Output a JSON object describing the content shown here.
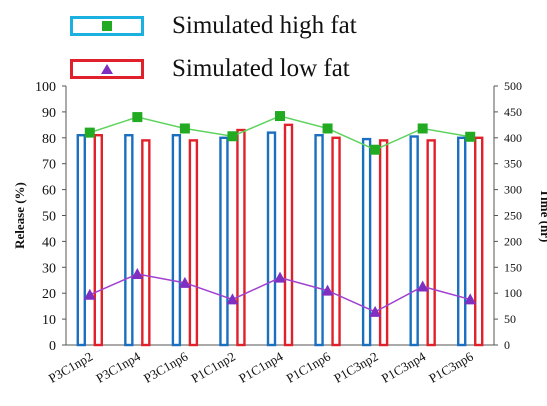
{
  "chart_data": {
    "type": "bar",
    "categories": [
      "P3C1np2",
      "P3C1np4",
      "P3C1np6",
      "P1C1np2",
      "P1C1np4",
      "P1C1np6",
      "P1C3np2",
      "P1C3np4",
      "P1C3np6"
    ],
    "series": [
      {
        "name": "Simulated high fat",
        "kind": "bar",
        "axis": "left",
        "color": "#1a6fc0",
        "values": [
          81,
          81,
          81,
          80,
          82,
          81,
          79.5,
          80.5,
          80
        ]
      },
      {
        "name": "Simulated low fat",
        "kind": "bar",
        "axis": "left",
        "color": "#e0202a",
        "values": [
          81,
          79,
          79,
          83,
          85,
          80,
          79,
          79,
          80
        ]
      },
      {
        "name": "Simulated high fat",
        "kind": "line",
        "axis": "right",
        "color": "#5ed35e",
        "values": [
          410,
          440,
          418,
          403,
          442,
          418,
          377,
          418,
          402
        ]
      },
      {
        "name": "Simulated low fat",
        "kind": "line",
        "axis": "right",
        "color": "#a040d0",
        "values": [
          97,
          137,
          120,
          88,
          130,
          105,
          64,
          113,
          88
        ]
      }
    ],
    "ylabel": "Release (%)",
    "y2label": "Time (hr)",
    "ylim": [
      0,
      100
    ],
    "y2lim": [
      0,
      500
    ],
    "yticks": [
      0,
      10,
      20,
      30,
      40,
      50,
      60,
      70,
      80,
      90,
      100
    ],
    "y2ticks": [
      0,
      50,
      100,
      150,
      200,
      250,
      300,
      350,
      400,
      450,
      500
    ],
    "legend": [
      {
        "label": "Simulated high fat",
        "box_color": "#1ab0e0",
        "marker": "square",
        "marker_color": "#22aa22"
      },
      {
        "label": "Simulated low fat",
        "box_color": "#e0202a",
        "marker": "triangle",
        "marker_color": "#8030c0"
      }
    ],
    "legend_position": "top",
    "grid": false
  }
}
